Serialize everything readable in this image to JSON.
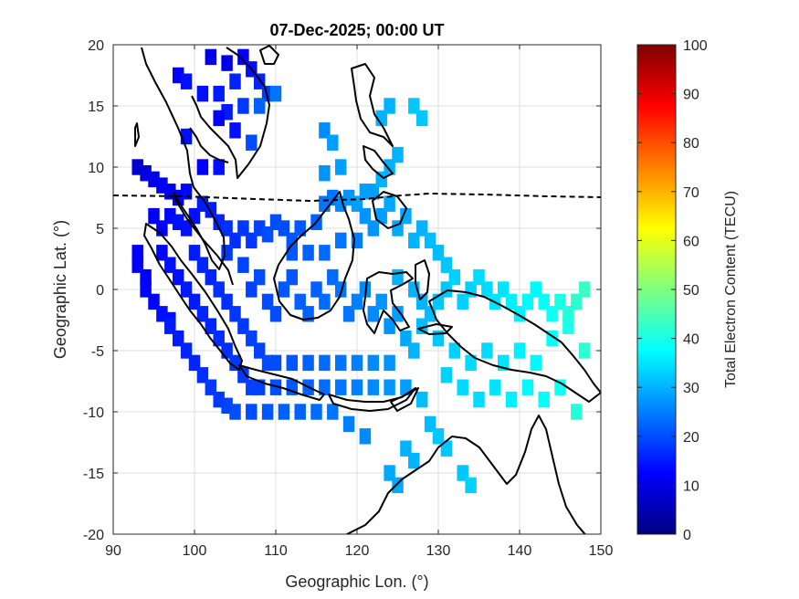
{
  "map": {
    "title": "07-Dec-2025; 00:00 UT",
    "xlabel": "Geographic Lon. (°)",
    "ylabel": "Geographic Lat. (°)",
    "xlim": [
      90,
      150
    ],
    "ylim": [
      -20,
      20
    ],
    "xticks": [
      "90",
      "100",
      "110",
      "120",
      "130",
      "140",
      "150"
    ],
    "yticks": [
      "20",
      "15",
      "10",
      "5",
      "0",
      "-5",
      "-10",
      "-15",
      "-20"
    ],
    "grid": true,
    "overlays": [
      "coastlines",
      "dashed magnetic-equator line"
    ]
  },
  "colorbar": {
    "label": "Total Electron Content (TECU)",
    "range": [
      0,
      100
    ],
    "ticks": [
      "100",
      "90",
      "80",
      "70",
      "60",
      "50",
      "40",
      "30",
      "20",
      "10",
      "0"
    ],
    "colormap": "jet"
  },
  "chart_data": {
    "type": "heatmap",
    "title": "07-Dec-2025; 00:00 UT",
    "xlabel": "Geographic Lon. (°)",
    "ylabel": "Geographic Lat. (°)",
    "xlim": [
      90,
      150
    ],
    "ylim": [
      -20,
      20
    ],
    "value_label": "Total Electron Content (TECU)",
    "value_range": [
      0,
      100
    ],
    "cells": [
      [
        102,
        19,
        10
      ],
      [
        104,
        18.5,
        10
      ],
      [
        106,
        19,
        12
      ],
      [
        107,
        18,
        14
      ],
      [
        108,
        17,
        16
      ],
      [
        109,
        16,
        18
      ],
      [
        98,
        17.5,
        12
      ],
      [
        99,
        17,
        14
      ],
      [
        101,
        16,
        14
      ],
      [
        103,
        16,
        15
      ],
      [
        105,
        17,
        16
      ],
      [
        106,
        15,
        18
      ],
      [
        104,
        14.5,
        15
      ],
      [
        103,
        14,
        12
      ],
      [
        105,
        13,
        14
      ],
      [
        107,
        12,
        20
      ],
      [
        108,
        15,
        22
      ],
      [
        110,
        16,
        24
      ],
      [
        99,
        12.5,
        14
      ],
      [
        101,
        10,
        12
      ],
      [
        103,
        10,
        14
      ],
      [
        93,
        10,
        8
      ],
      [
        94,
        9.5,
        9
      ],
      [
        95,
        9,
        10
      ],
      [
        96,
        8.5,
        11
      ],
      [
        97,
        8,
        11
      ],
      [
        98,
        7.5,
        12
      ],
      [
        99,
        8,
        13
      ],
      [
        95,
        6,
        12
      ],
      [
        96,
        5,
        12
      ],
      [
        97,
        6,
        13
      ],
      [
        98,
        5.5,
        14
      ],
      [
        99,
        5,
        14
      ],
      [
        100,
        6,
        14
      ],
      [
        101,
        7,
        15
      ],
      [
        102,
        6.5,
        15
      ],
      [
        103,
        5.5,
        16
      ],
      [
        104,
        5,
        17
      ],
      [
        105,
        4,
        17
      ],
      [
        106,
        5,
        18
      ],
      [
        107,
        4,
        18
      ],
      [
        108,
        5,
        19
      ],
      [
        109,
        4.5,
        20
      ],
      [
        110,
        5.5,
        20
      ],
      [
        111,
        5,
        20
      ],
      [
        112,
        4,
        21
      ],
      [
        113,
        5,
        21
      ],
      [
        115,
        5.5,
        22
      ],
      [
        116,
        7,
        24
      ],
      [
        117,
        7.5,
        24
      ],
      [
        118,
        7,
        26
      ],
      [
        119,
        7.5,
        27
      ],
      [
        120,
        7,
        28
      ],
      [
        121,
        8,
        28
      ],
      [
        122,
        8,
        28
      ],
      [
        123,
        9,
        30
      ],
      [
        124,
        10,
        30
      ],
      [
        125,
        11,
        30
      ],
      [
        123,
        14,
        30
      ],
      [
        124,
        15,
        30
      ],
      [
        127,
        15,
        32
      ],
      [
        128,
        14,
        32
      ],
      [
        116,
        13,
        26
      ],
      [
        117,
        12,
        28
      ],
      [
        116,
        9.5,
        27
      ],
      [
        118,
        10,
        28
      ],
      [
        93,
        3,
        12
      ],
      [
        93,
        2,
        12
      ],
      [
        94,
        1,
        12
      ],
      [
        94,
        0,
        13
      ],
      [
        95,
        -1,
        13
      ],
      [
        96,
        -2,
        14
      ],
      [
        97,
        -2.5,
        14
      ],
      [
        97,
        -3,
        15
      ],
      [
        98,
        -4,
        15
      ],
      [
        99,
        -5,
        16
      ],
      [
        100,
        -6,
        16
      ],
      [
        101,
        -7,
        17
      ],
      [
        102,
        -8,
        18
      ],
      [
        103,
        -9,
        18
      ],
      [
        104,
        -9.5,
        19
      ],
      [
        105,
        -10,
        20
      ],
      [
        107,
        -10,
        20
      ],
      [
        109,
        -10,
        21
      ],
      [
        111,
        -10,
        22
      ],
      [
        113,
        -10,
        22
      ],
      [
        115,
        -10,
        23
      ],
      [
        117,
        -10,
        24
      ],
      [
        119,
        -11,
        25
      ],
      [
        121,
        -12,
        26
      ],
      [
        96,
        3,
        13
      ],
      [
        97,
        2,
        14
      ],
      [
        98,
        1,
        14
      ],
      [
        99,
        0,
        15
      ],
      [
        100,
        -1,
        15
      ],
      [
        101,
        -2,
        16
      ],
      [
        102,
        -3,
        16
      ],
      [
        103,
        -4,
        17
      ],
      [
        104,
        -5,
        17
      ],
      [
        105,
        -6,
        18
      ],
      [
        106,
        -7,
        18
      ],
      [
        107,
        -8,
        19
      ],
      [
        108,
        -8,
        19
      ],
      [
        110,
        -8,
        20
      ],
      [
        112,
        -8,
        21
      ],
      [
        114,
        -8,
        22
      ],
      [
        116,
        -8,
        23
      ],
      [
        118,
        -8,
        24
      ],
      [
        120,
        -8,
        25
      ],
      [
        122,
        -8,
        26
      ],
      [
        124,
        -8,
        27
      ],
      [
        126,
        -8,
        28
      ],
      [
        100,
        3,
        15
      ],
      [
        101,
        2,
        16
      ],
      [
        102,
        1,
        16
      ],
      [
        103,
        0,
        17
      ],
      [
        104,
        -1,
        17
      ],
      [
        105,
        -2,
        18
      ],
      [
        106,
        -3,
        18
      ],
      [
        107,
        -4,
        19
      ],
      [
        108,
        -5,
        19
      ],
      [
        109,
        -6,
        20
      ],
      [
        110,
        -6,
        20
      ],
      [
        112,
        -6,
        21
      ],
      [
        114,
        -6,
        22
      ],
      [
        116,
        -6,
        23
      ],
      [
        118,
        -6,
        24
      ],
      [
        120,
        -6,
        25
      ],
      [
        122,
        -6,
        26
      ],
      [
        124,
        -6,
        27
      ],
      [
        104,
        3,
        18
      ],
      [
        106,
        2,
        19
      ],
      [
        107,
        0,
        19
      ],
      [
        108,
        1,
        20
      ],
      [
        109,
        -1,
        20
      ],
      [
        110,
        -2,
        20
      ],
      [
        111,
        0,
        21
      ],
      [
        112,
        1,
        21
      ],
      [
        113,
        -1,
        22
      ],
      [
        114,
        -2,
        22
      ],
      [
        115,
        0,
        22
      ],
      [
        116,
        -1,
        23
      ],
      [
        117,
        1,
        23
      ],
      [
        118,
        0,
        24
      ],
      [
        119,
        -2,
        24
      ],
      [
        120,
        -1,
        25
      ],
      [
        121,
        0,
        26
      ],
      [
        122,
        -2,
        26
      ],
      [
        123,
        -1,
        27
      ],
      [
        124,
        -3,
        27
      ],
      [
        125,
        -2,
        28
      ],
      [
        112,
        3,
        21
      ],
      [
        114,
        3,
        22
      ],
      [
        116,
        3,
        23
      ],
      [
        118,
        4,
        24
      ],
      [
        120,
        4,
        25
      ],
      [
        121,
        6,
        27
      ],
      [
        122,
        5,
        27
      ],
      [
        123,
        6,
        28
      ],
      [
        124,
        7,
        29
      ],
      [
        125,
        5,
        29
      ],
      [
        126,
        6,
        29
      ],
      [
        127,
        4,
        30
      ],
      [
        128,
        5,
        30
      ],
      [
        129,
        4,
        31
      ],
      [
        130,
        3,
        31
      ],
      [
        131,
        2,
        32
      ],
      [
        125,
        1,
        30
      ],
      [
        127,
        0,
        30
      ],
      [
        128,
        -1,
        30
      ],
      [
        126,
        -4,
        29
      ],
      [
        127,
        -5,
        30
      ],
      [
        128,
        -3,
        31
      ],
      [
        129,
        -2,
        31
      ],
      [
        130,
        -1,
        32
      ],
      [
        131,
        0,
        32
      ],
      [
        132,
        1,
        33
      ],
      [
        133,
        -1,
        33
      ],
      [
        134,
        0,
        33
      ],
      [
        135,
        1,
        34
      ],
      [
        136,
        0,
        34
      ],
      [
        137,
        -1,
        35
      ],
      [
        138,
        0,
        35
      ],
      [
        139,
        -1,
        36
      ],
      [
        140,
        -2,
        36
      ],
      [
        141,
        -1,
        37
      ],
      [
        142,
        0,
        37
      ],
      [
        143,
        -1,
        38
      ],
      [
        144,
        -2,
        39
      ],
      [
        145,
        -1,
        40
      ],
      [
        146,
        -2,
        41
      ],
      [
        147,
        -1,
        42
      ],
      [
        148,
        0,
        43
      ],
      [
        130,
        -4,
        32
      ],
      [
        132,
        -5,
        33
      ],
      [
        134,
        -6,
        34
      ],
      [
        136,
        -5,
        34
      ],
      [
        138,
        -6,
        35
      ],
      [
        140,
        -5,
        36
      ],
      [
        142,
        -6,
        37
      ],
      [
        144,
        -4,
        38
      ],
      [
        146,
        -3,
        40
      ],
      [
        148,
        -5,
        42
      ],
      [
        131,
        -7,
        33
      ],
      [
        133,
        -8,
        34
      ],
      [
        135,
        -9,
        34
      ],
      [
        137,
        -8,
        35
      ],
      [
        139,
        -9,
        36
      ],
      [
        141,
        -8,
        37
      ],
      [
        143,
        -9,
        38
      ],
      [
        145,
        -8,
        39
      ],
      [
        147,
        -10,
        41
      ],
      [
        128,
        -9,
        31
      ],
      [
        129,
        -11,
        31
      ],
      [
        130,
        -12,
        32
      ],
      [
        131,
        -13,
        32
      ],
      [
        126,
        -13,
        30
      ],
      [
        127,
        -14,
        30
      ],
      [
        124,
        -15,
        29
      ],
      [
        125,
        -16,
        29
      ],
      [
        133,
        -15,
        32
      ],
      [
        134,
        -16,
        33
      ]
    ]
  }
}
